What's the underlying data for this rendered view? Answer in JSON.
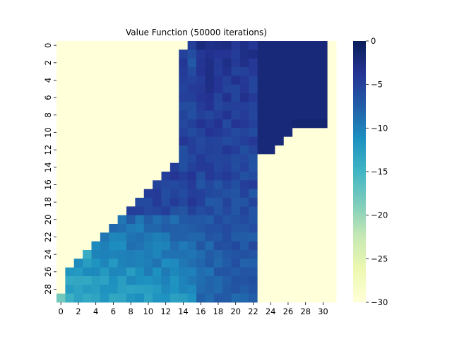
{
  "chart_data": {
    "type": "heatmap",
    "title": "Value Function (50000 iterations)",
    "xlabel": "",
    "ylabel": "",
    "n_rows": 30,
    "n_cols": 32,
    "x_ticks": [
      0,
      2,
      4,
      6,
      8,
      10,
      12,
      14,
      16,
      18,
      20,
      22,
      24,
      26,
      28,
      30
    ],
    "y_ticks": [
      0,
      2,
      4,
      6,
      8,
      10,
      12,
      14,
      16,
      18,
      20,
      22,
      24,
      26,
      28
    ],
    "color_scale": {
      "name": "YlGnBu",
      "vmin": -30,
      "vmax": 0,
      "ticks": [
        0,
        -5,
        -10,
        -15,
        -20,
        -25,
        -30
      ],
      "tick_labels": [
        "0",
        "−5",
        "−10",
        "−15",
        "−20",
        "−25",
        "−30"
      ],
      "colors": [
        "#ffffd9",
        "#edf8b1",
        "#c7e9b4",
        "#7fcdbb",
        "#41b6c4",
        "#1d91c0",
        "#225ea8",
        "#253494",
        "#081d58"
      ]
    },
    "wall_value": -30,
    "row_active_start": [
      15,
      14,
      14,
      14,
      14,
      14,
      14,
      14,
      14,
      14,
      14,
      14,
      14,
      14,
      13,
      12,
      11,
      10,
      9,
      8,
      7,
      6,
      5,
      4,
      3,
      2,
      1,
      1,
      1,
      0
    ],
    "row_active_end": [
      30,
      30,
      30,
      30,
      30,
      30,
      30,
      30,
      30,
      30,
      26,
      25,
      24,
      22,
      22,
      22,
      22,
      22,
      22,
      22,
      22,
      22,
      22,
      22,
      22,
      22,
      22,
      22,
      22,
      22
    ],
    "right_band_values": [
      -2,
      -1,
      -0.5
    ],
    "estimated_value_range": [
      -18,
      -0.5
    ]
  }
}
